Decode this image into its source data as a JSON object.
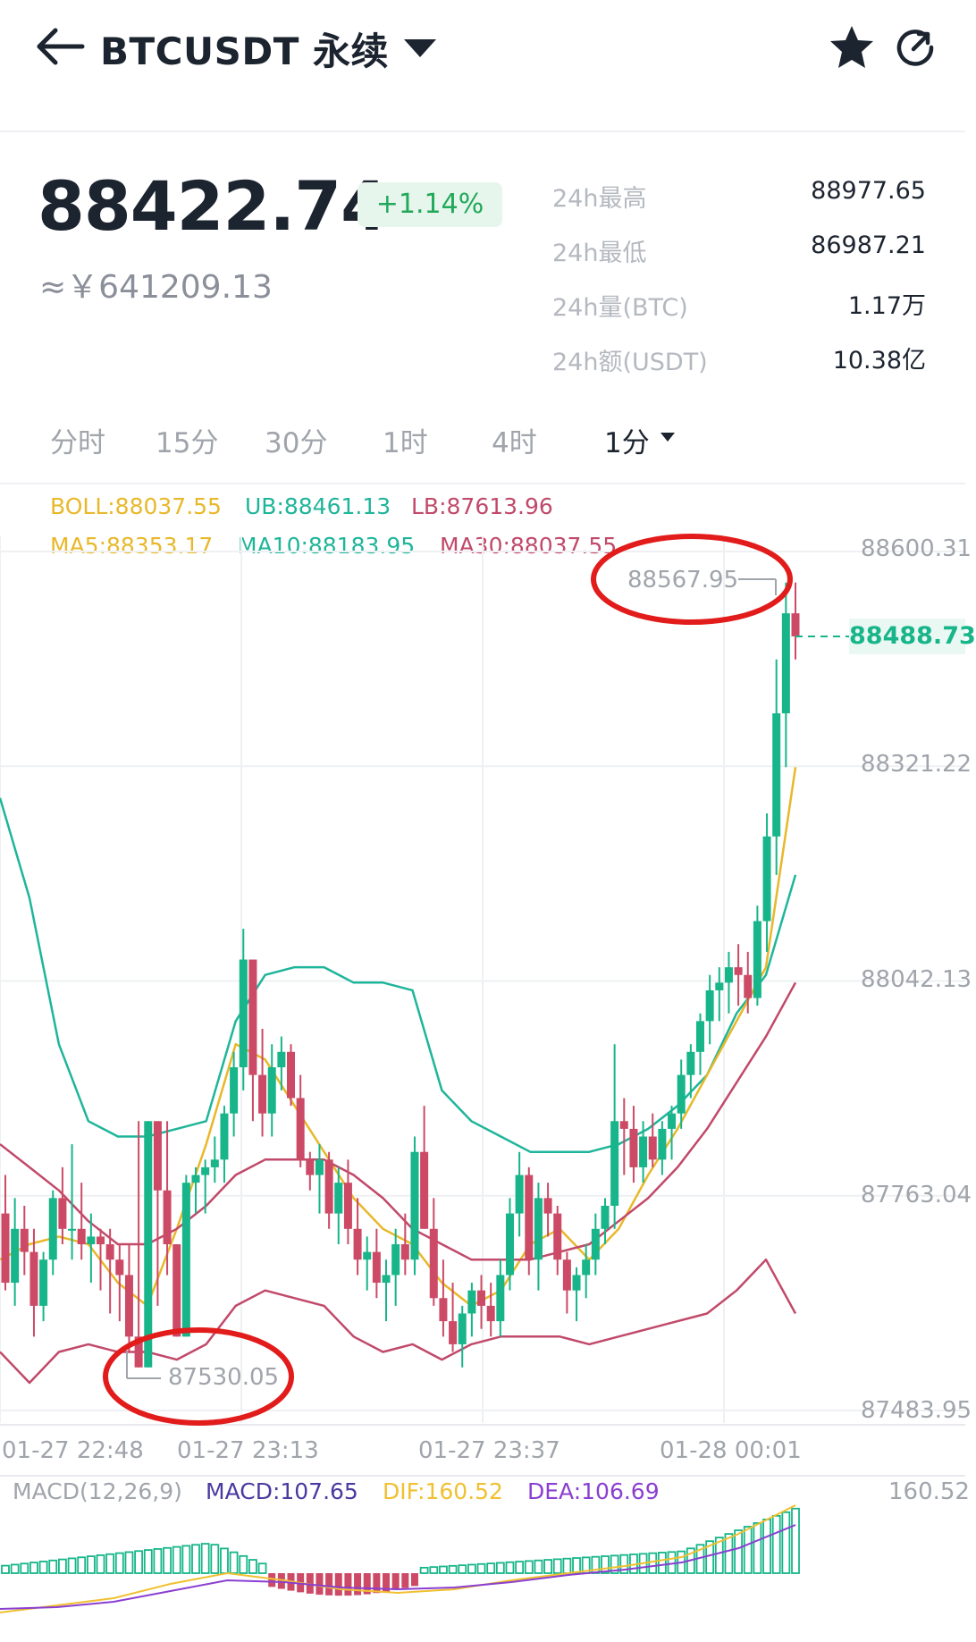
{
  "header": {
    "back_icon": "arrow-left-icon",
    "title": "BTCUSDT 永续",
    "dropdown_icon": "caret-down-icon",
    "favorite_icon": "star-icon",
    "share_icon": "share-icon"
  },
  "ticker": {
    "price": "88422.74",
    "change": "+1.14%",
    "cny": "≈￥641209.13",
    "stats": [
      {
        "label": "24h最高",
        "value": "88977.65"
      },
      {
        "label": "24h最低",
        "value": "86987.21"
      },
      {
        "label": "24h量(BTC)",
        "value": "1.17万"
      },
      {
        "label": "24h额(USDT)",
        "value": "10.38亿"
      }
    ]
  },
  "tabs": [
    "分时",
    "15分",
    "30分",
    "1时",
    "4时",
    "1分"
  ],
  "active_tab": "1分",
  "indicators": {
    "boll": "BOLL:88037.55",
    "ub": "UB:88461.13",
    "lb": "LB:87613.96",
    "ma5": "MA5:88353.17",
    "ma10": "MA10:88183.95",
    "ma30": "MA30:88037.55"
  },
  "colors": {
    "up": "#17b589",
    "down": "#cc4a66",
    "boll": "#e8b82a",
    "ma10": "#1fb59a",
    "ma30": "#c1496a",
    "annotation": "#e21b1b",
    "macd": "#4a3aa0",
    "dif": "#f0c030",
    "dea": "#8a3fd1"
  },
  "chart": {
    "price_axis": [
      "88600.31",
      "88321.22",
      "88042.13",
      "87763.04",
      "87483.95"
    ],
    "time_axis": [
      "01-27 22:48",
      "01-27 23:13",
      "01-27 23:37",
      "01-28 00:01"
    ],
    "last_price": "88488.73",
    "max_label": "88567.95",
    "min_label": "87530.05"
  },
  "chart_data": {
    "type": "candlestick",
    "ylim": [
      87483.95,
      88600.31
    ],
    "y_ticks": [
      88600.31,
      88321.22,
      88042.13,
      87763.04,
      87483.95
    ],
    "x_ticks": [
      "01-27 22:48",
      "01-27 23:13",
      "01-27 23:37",
      "01-28 00:01"
    ],
    "candles": [
      [
        87740,
        87790,
        87640,
        87650
      ],
      [
        87650,
        87760,
        87620,
        87720
      ],
      [
        87720,
        87750,
        87660,
        87690
      ],
      [
        87690,
        87720,
        87580,
        87620
      ],
      [
        87620,
        87690,
        87600,
        87680
      ],
      [
        87680,
        87770,
        87660,
        87760
      ],
      [
        87760,
        87800,
        87700,
        87720
      ],
      [
        87720,
        87830,
        87680,
        87720
      ],
      [
        87720,
        87780,
        87680,
        87700
      ],
      [
        87700,
        87740,
        87650,
        87710
      ],
      [
        87710,
        87720,
        87640,
        87700
      ],
      [
        87700,
        87720,
        87610,
        87680
      ],
      [
        87680,
        87700,
        87600,
        87660
      ],
      [
        87660,
        87700,
        87560,
        87580
      ],
      [
        87580,
        87860,
        87540,
        87540
      ],
      [
        87540,
        87860,
        87540,
        87860
      ],
      [
        87860,
        87860,
        87620,
        87770
      ],
      [
        87770,
        87860,
        87660,
        87700
      ],
      [
        87700,
        87700,
        87580,
        87580
      ],
      [
        87580,
        87790,
        87580,
        87780
      ],
      [
        87780,
        87800,
        87740,
        87790
      ],
      [
        87790,
        87810,
        87740,
        87800
      ],
      [
        87800,
        87840,
        87780,
        87810
      ],
      [
        87810,
        87880,
        87780,
        87870
      ],
      [
        87870,
        87950,
        87840,
        87930
      ],
      [
        87930,
        88110,
        87900,
        88070
      ],
      [
        88070,
        88070,
        87860,
        87920
      ],
      [
        87920,
        87980,
        87840,
        87870
      ],
      [
        87870,
        87960,
        87840,
        87930
      ],
      [
        87930,
        87970,
        87900,
        87950
      ],
      [
        87950,
        87960,
        87880,
        87890
      ],
      [
        87890,
        87920,
        87800,
        87810
      ],
      [
        87810,
        87820,
        87770,
        87790
      ],
      [
        87790,
        87830,
        87740,
        87810
      ],
      [
        87810,
        87820,
        87720,
        87740
      ],
      [
        87740,
        87800,
        87700,
        87780
      ],
      [
        87780,
        87810,
        87700,
        87720
      ],
      [
        87720,
        87760,
        87660,
        87680
      ],
      [
        87680,
        87710,
        87640,
        87690
      ],
      [
        87690,
        87720,
        87630,
        87650
      ],
      [
        87650,
        87680,
        87600,
        87660
      ],
      [
        87660,
        87720,
        87620,
        87700
      ],
      [
        87700,
        87740,
        87660,
        87680
      ],
      [
        87680,
        87840,
        87660,
        87820
      ],
      [
        87820,
        87880,
        87720,
        87720
      ],
      [
        87720,
        87760,
        87620,
        87630
      ],
      [
        87630,
        87680,
        87580,
        87600
      ],
      [
        87600,
        87650,
        87560,
        87570
      ],
      [
        87570,
        87620,
        87540,
        87610
      ],
      [
        87610,
        87650,
        87580,
        87640
      ],
      [
        87640,
        87660,
        87590,
        87620
      ],
      [
        87620,
        87650,
        87580,
        87600
      ],
      [
        87600,
        87680,
        87580,
        87660
      ],
      [
        87660,
        87760,
        87640,
        87740
      ],
      [
        87740,
        87820,
        87710,
        87790
      ],
      [
        87790,
        87800,
        87660,
        87680
      ],
      [
        87680,
        87780,
        87640,
        87760
      ],
      [
        87760,
        87780,
        87710,
        87740
      ],
      [
        87740,
        87750,
        87660,
        87680
      ],
      [
        87680,
        87690,
        87610,
        87640
      ],
      [
        87640,
        87670,
        87600,
        87660
      ],
      [
        87660,
        87700,
        87630,
        87680
      ],
      [
        87680,
        87740,
        87660,
        87720
      ],
      [
        87720,
        87760,
        87700,
        87750
      ],
      [
        87750,
        87960,
        87720,
        87860
      ],
      [
        87860,
        87890,
        87790,
        87850
      ],
      [
        87850,
        87880,
        87780,
        87800
      ],
      [
        87800,
        87860,
        87780,
        87840
      ],
      [
        87840,
        87870,
        87800,
        87810
      ],
      [
        87810,
        87860,
        87790,
        87850
      ],
      [
        87850,
        87880,
        87810,
        87870
      ],
      [
        87870,
        87940,
        87850,
        87920
      ],
      [
        87920,
        87960,
        87890,
        87950
      ],
      [
        87950,
        88000,
        87920,
        87990
      ],
      [
        87990,
        88050,
        87960,
        88030
      ],
      [
        88030,
        88060,
        87990,
        88040
      ],
      [
        88040,
        88080,
        88000,
        88060
      ],
      [
        88060,
        88090,
        88010,
        88050
      ],
      [
        88050,
        88080,
        88000,
        88020
      ],
      [
        88020,
        88140,
        88010,
        88120
      ],
      [
        88120,
        88260,
        88080,
        88230
      ],
      [
        88230,
        88460,
        88180,
        88390
      ],
      [
        88390,
        88560,
        88320,
        88520
      ],
      [
        88520,
        88560,
        88460,
        88490
      ]
    ],
    "series": [
      {
        "name": "UB",
        "values": [
          88280,
          88150,
          87960,
          87860,
          87840,
          87840,
          87850,
          87860,
          87990,
          88050,
          88060,
          88060,
          88040,
          88040,
          88030,
          87900,
          87860,
          87840,
          87820,
          87820,
          87820,
          87830,
          87850,
          87880,
          87920,
          88000,
          88050,
          88180
        ]
      },
      {
        "name": "MA5",
        "values": [
          87680,
          87700,
          87710,
          87700,
          87650,
          87620,
          87720,
          87830,
          87960,
          87940,
          87880,
          87820,
          87760,
          87720,
          87700,
          87650,
          87620,
          87640,
          87700,
          87720,
          87680,
          87720,
          87790,
          87850,
          87920,
          87990,
          88060,
          88320
        ]
      },
      {
        "name": "MA30",
        "values": [
          87830,
          87800,
          87770,
          87730,
          87700,
          87700,
          87720,
          87750,
          87790,
          87810,
          87810,
          87810,
          87790,
          87760,
          87720,
          87700,
          87680,
          87680,
          87680,
          87690,
          87700,
          87730,
          87760,
          87800,
          87850,
          87910,
          87970,
          88040
        ]
      },
      {
        "name": "LB",
        "values": [
          87560,
          87520,
          87560,
          87570,
          87560,
          87560,
          87550,
          87570,
          87620,
          87640,
          87630,
          87620,
          87580,
          87560,
          87570,
          87550,
          87570,
          87580,
          87580,
          87580,
          87570,
          87580,
          87590,
          87600,
          87610,
          87640,
          87680,
          87610
        ]
      }
    ],
    "macd": {
      "macd": "107.65",
      "dif": "160.52",
      "dea": "106.69"
    }
  },
  "macd_panel": {
    "title": "MACD(12,26,9)",
    "macd_label": "MACD:107.65",
    "dif_label": "DIF:160.52",
    "dea_label": "DEA:106.69",
    "axis_top": "160.52"
  }
}
